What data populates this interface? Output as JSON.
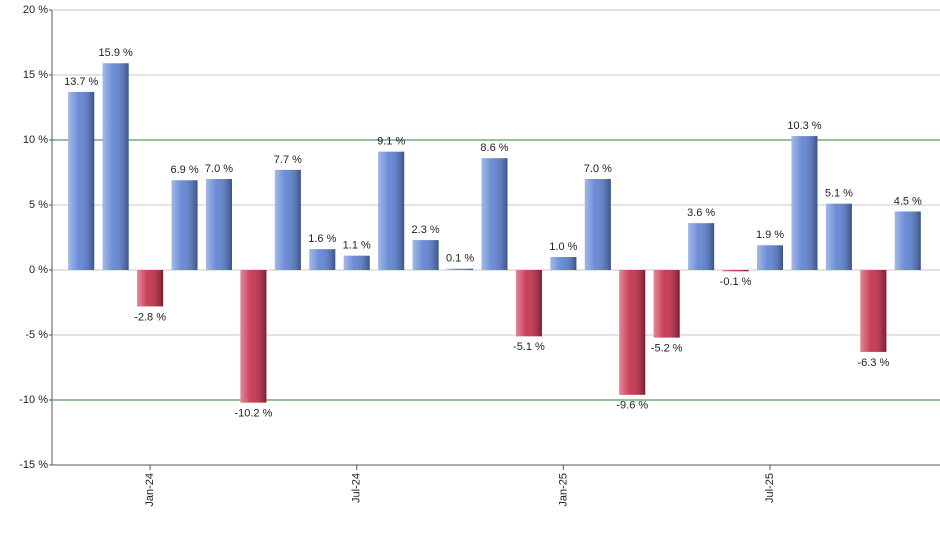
{
  "chart_data": {
    "type": "bar",
    "categories": [
      null,
      null,
      "Jan-24",
      null,
      null,
      null,
      null,
      null,
      "Jul-24",
      null,
      null,
      null,
      null,
      null,
      "Jan-25",
      null,
      null,
      null,
      null,
      null,
      "Jul-25",
      null,
      null,
      null,
      null
    ],
    "values": [
      13.7,
      15.9,
      -2.8,
      6.9,
      7.0,
      -10.2,
      7.7,
      1.6,
      1.1,
      9.1,
      2.3,
      0.1,
      8.6,
      -5.1,
      1.0,
      7.0,
      -9.6,
      -5.2,
      3.6,
      -0.1,
      1.9,
      10.3,
      5.1,
      -6.3,
      4.5
    ],
    "value_labels": [
      "13.7 %",
      "15.9 %",
      "-2.8 %",
      "6.9 %",
      "7.0 %",
      "-10.2 %",
      "7.7 %",
      "1.6 %",
      "1.1 %",
      "9.1 %",
      "2.3 %",
      "0.1 %",
      "8.6 %",
      "-5.1 %",
      "1.0 %",
      "7.0 %",
      "-9.6 %",
      "-5.2 %",
      "3.6 %",
      "-0.1 %",
      "1.9 %",
      "10.3 %",
      "5.1 %",
      "-6.3 %",
      "4.5 %"
    ],
    "color": "#5a7fd2",
    "negative_color": "#c42a48",
    "ylim": [
      -15,
      20
    ],
    "yticks": [
      {
        "value": -15,
        "label": "-15 %"
      },
      {
        "value": -10,
        "label": "-10 %"
      },
      {
        "value": -5,
        "label": "-5 %"
      },
      {
        "value": 0,
        "label": "0 %"
      },
      {
        "value": 5,
        "label": "5 %"
      },
      {
        "value": 10,
        "label": "10 %"
      },
      {
        "value": 15,
        "label": "15 %"
      },
      {
        "value": 20,
        "label": "20 %"
      }
    ],
    "grid": true,
    "reference_lines": [
      10,
      -10
    ],
    "reference_color": "#2e7d32"
  }
}
